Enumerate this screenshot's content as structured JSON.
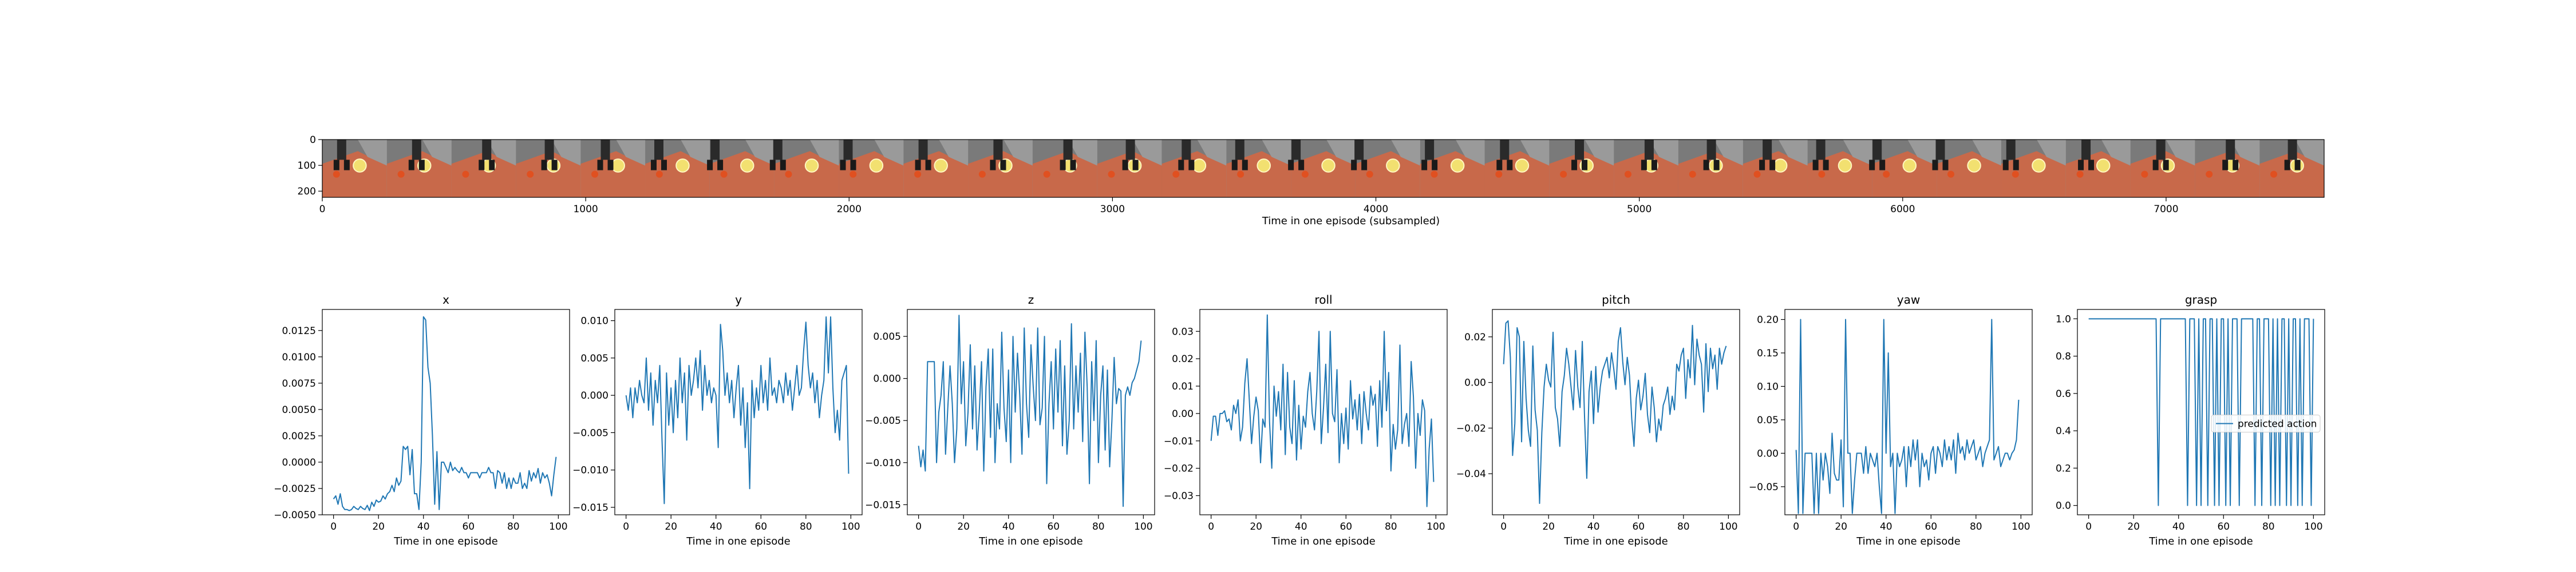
{
  "filmstrip": {
    "xlabel": "Time in one episode (subsampled)",
    "xticks": [
      0,
      1000,
      2000,
      3000,
      4000,
      5000,
      6000,
      7000
    ],
    "yticks": [
      0,
      100,
      200
    ],
    "xlim": [
      0,
      7600
    ],
    "ylim": [
      0,
      224
    ],
    "frames": 31,
    "colors": {
      "floor": "#c8694a",
      "background": "#7a7a7a",
      "ball": "#f2e070",
      "gripper": "#2a2a2a"
    }
  },
  "chart_data": [
    {
      "type": "line",
      "title": "x",
      "xlabel": "Time in one episode",
      "xlim": [
        -5,
        105
      ],
      "ylim": [
        -0.005,
        0.0145
      ],
      "xticks": [
        0,
        20,
        40,
        60,
        80,
        100
      ],
      "yticks": [
        -0.005,
        -0.0025,
        0.0,
        0.0025,
        0.005,
        0.0075,
        0.01,
        0.0125
      ],
      "ytick_labels": [
        "−0.0050",
        "−0.0025",
        "0.0000",
        "0.0025",
        "0.0050",
        "0.0075",
        "0.0100",
        "0.0125"
      ],
      "values": [
        -0.0035,
        -0.0032,
        -0.004,
        -0.003,
        -0.0042,
        -0.0045,
        -0.0045,
        -0.0046,
        -0.0045,
        -0.0042,
        -0.0044,
        -0.0045,
        -0.0042,
        -0.0044,
        -0.0045,
        -0.0041,
        -0.0046,
        -0.0038,
        -0.0042,
        -0.0036,
        -0.0038,
        -0.0037,
        -0.0032,
        -0.0035,
        -0.003,
        -0.0028,
        -0.0022,
        -0.0028,
        -0.0015,
        -0.0022,
        -0.0018,
        0.0015,
        0.0012,
        0.0015,
        -0.0012,
        0.0012,
        -0.003,
        -0.003,
        -0.0045,
        0.0,
        0.0138,
        0.0135,
        0.009,
        0.0075,
        0.0025,
        -0.004,
        0.001,
        -0.0045,
        0.0,
        0.0,
        -0.0005,
        -0.001,
        0.0,
        -0.0008,
        -0.0005,
        -0.0008,
        -0.001,
        -0.0005,
        -0.001,
        -0.001,
        -0.0015,
        -0.001,
        -0.001,
        -0.001,
        -0.001,
        -0.0015,
        -0.001,
        -0.001,
        -0.001,
        -0.0005,
        -0.001,
        -0.001,
        -0.0025,
        -0.0008,
        -0.001,
        -0.002,
        -0.001,
        -0.0025,
        -0.0015,
        -0.0025,
        -0.0015,
        -0.002,
        -0.002,
        -0.001,
        -0.0025,
        -0.002,
        -0.0025,
        -0.0008,
        -0.0018,
        -0.001,
        -0.0015,
        -0.0006,
        -0.002,
        -0.001,
        -0.0015,
        -0.0012,
        -0.002,
        -0.0032,
        -0.0012,
        0.0005
      ]
    },
    {
      "type": "line",
      "title": "y",
      "xlabel": "Time in one episode",
      "xlim": [
        -5,
        105
      ],
      "ylim": [
        -0.016,
        0.0115
      ],
      "xticks": [
        0,
        20,
        40,
        60,
        80,
        100
      ],
      "yticks": [
        -0.015,
        -0.01,
        -0.005,
        0.0,
        0.005,
        0.01
      ],
      "ytick_labels": [
        "−0.015",
        "−0.010",
        "−0.005",
        "0.000",
        "0.005",
        "0.010"
      ],
      "values": [
        0.0,
        -0.002,
        0.001,
        -0.003,
        0.001,
        -0.001,
        0.002,
        0.0,
        -0.001,
        0.005,
        -0.002,
        0.003,
        -0.004,
        0.002,
        -0.001,
        0.004,
        -0.006,
        -0.0145,
        0.003,
        -0.004,
        0.001,
        -0.005,
        0.002,
        -0.003,
        0.005,
        -0.001,
        0.003,
        -0.006,
        0.004,
        0.0,
        0.002,
        0.005,
        0.001,
        0.006,
        -0.002,
        0.004,
        0.0,
        0.002,
        -0.001,
        0.001,
        0.0,
        -0.007,
        0.0095,
        0.006,
        0.0,
        0.003,
        -0.001,
        0.002,
        -0.003,
        0.001,
        0.004,
        -0.004,
        0.001,
        -0.007,
        -0.001,
        -0.0125,
        0.002,
        -0.003,
        0.001,
        -0.002,
        0.004,
        -0.001,
        0.002,
        -0.002,
        0.005,
        0.0,
        0.001,
        -0.001,
        0.002,
        0.001,
        -0.001,
        0.003,
        0.0,
        0.002,
        -0.002,
        0.001,
        0.004,
        0.0,
        0.001,
        0.006,
        0.0098,
        0.004,
        0.001,
        0.003,
        -0.001,
        0.002,
        -0.003,
        0.0,
        0.002,
        0.0105,
        0.003,
        0.0105,
        0.001,
        -0.005,
        -0.002,
        -0.006,
        0.002,
        0.003,
        0.004,
        -0.0105
      ]
    },
    {
      "type": "line",
      "title": "z",
      "xlabel": "Time in one episode",
      "xlim": [
        -5,
        105
      ],
      "ylim": [
        -0.0162,
        0.0082
      ],
      "xticks": [
        0,
        20,
        40,
        60,
        80,
        100
      ],
      "yticks": [
        -0.015,
        -0.01,
        -0.005,
        0.0,
        0.005
      ],
      "ytick_labels": [
        "−0.015",
        "−0.010",
        "−0.005",
        "0.000",
        "0.005"
      ],
      "values": [
        -0.008,
        -0.0105,
        -0.0085,
        -0.011,
        0.002,
        0.002,
        0.002,
        0.002,
        -0.01,
        -0.004,
        -0.002,
        0.002,
        -0.009,
        -0.0035,
        0.0015,
        -0.003,
        -0.01,
        -0.006,
        0.0075,
        -0.003,
        0.002,
        -0.008,
        -0.004,
        0.004,
        -0.006,
        0.0015,
        -0.0085,
        -0.004,
        0.002,
        -0.011,
        -0.001,
        0.0035,
        -0.007,
        0.0035,
        -0.01,
        -0.003,
        -0.006,
        0.0055,
        -0.0035,
        -0.0075,
        0.001,
        -0.01,
        0.005,
        -0.004,
        0.003,
        -0.002,
        -0.009,
        0.006,
        -0.003,
        -0.007,
        0.004,
        -0.001,
        -0.005,
        0.006,
        -0.0055,
        -0.0035,
        0.005,
        -0.0125,
        -0.003,
        0.002,
        -0.006,
        0.0035,
        -0.004,
        0.0045,
        -0.008,
        0.0015,
        -0.009,
        -0.005,
        0.0065,
        -0.006,
        0.0015,
        -0.004,
        0.003,
        -0.0075,
        0.0055,
        -0.001,
        -0.0125,
        0.002,
        -0.005,
        0.0045,
        -0.01,
        -0.002,
        0.0015,
        -0.0085,
        0.001,
        -0.0105,
        -0.005,
        0.0025,
        -0.003,
        -0.0012,
        -0.0015,
        -0.0152,
        -0.002,
        -0.001,
        -0.002,
        -0.0005,
        0.0,
        0.001,
        0.002,
        0.0045
      ]
    },
    {
      "type": "line",
      "title": "roll",
      "xlabel": "Time in one episode",
      "xlim": [
        -5,
        105
      ],
      "ylim": [
        -0.037,
        0.038
      ],
      "xticks": [
        0,
        20,
        40,
        60,
        80,
        100
      ],
      "yticks": [
        -0.03,
        -0.02,
        -0.01,
        0.0,
        0.01,
        0.02,
        0.03
      ],
      "ytick_labels": [
        "−0.03",
        "−0.02",
        "−0.01",
        "0.00",
        "0.01",
        "0.02",
        "0.03"
      ],
      "values": [
        -0.01,
        -0.001,
        -0.001,
        -0.008,
        0.0,
        0.0,
        0.001,
        -0.003,
        -0.002,
        -0.006,
        0.003,
        0.0,
        0.005,
        -0.01,
        -0.005,
        0.011,
        0.02,
        0.005,
        -0.011,
        -0.001,
        0.006,
        0.001,
        -0.018,
        -0.002,
        -0.005,
        0.036,
        -0.003,
        -0.02,
        0.01,
        -0.001,
        0.008,
        -0.006,
        0.018,
        -0.015,
        0.015,
        -0.005,
        -0.011,
        0.012,
        -0.017,
        0.003,
        -0.013,
        -0.001,
        -0.005,
        0.008,
        0.015,
        0.0,
        -0.006,
        0.008,
        0.03,
        -0.011,
        0.002,
        0.018,
        -0.007,
        0.03,
        0.0,
        -0.003,
        0.016,
        -0.018,
        0.0,
        -0.011,
        0.002,
        -0.013,
        0.012,
        -0.002,
        0.005,
        -0.006,
        0.007,
        -0.011,
        0.008,
        0.0,
        -0.006,
        0.01,
        0.003,
        0.007,
        -0.012,
        0.012,
        -0.005,
        0.03,
        0.001,
        0.015,
        -0.021,
        -0.004,
        -0.013,
        -0.006,
        0.025,
        -0.011,
        -0.004,
        0.0,
        -0.012,
        0.019,
        0.006,
        -0.02,
        0.0,
        -0.008,
        0.005,
        0.001,
        -0.034,
        -0.013,
        -0.002,
        -0.025
      ]
    },
    {
      "type": "line",
      "title": "pitch",
      "xlabel": "Time in one episode",
      "xlim": [
        -5,
        105
      ],
      "ylim": [
        -0.058,
        0.032
      ],
      "xticks": [
        0,
        20,
        40,
        60,
        80,
        100
      ],
      "yticks": [
        -0.04,
        -0.02,
        0.0,
        0.02
      ],
      "ytick_labels": [
        "−0.04",
        "−0.02",
        "0.00",
        "0.02"
      ],
      "values": [
        0.008,
        0.026,
        0.027,
        0.011,
        -0.032,
        -0.018,
        0.024,
        0.02,
        -0.026,
        0.018,
        -0.007,
        -0.021,
        -0.028,
        0.016,
        -0.012,
        -0.021,
        -0.053,
        -0.022,
        -0.002,
        0.008,
        0.001,
        -0.002,
        0.022,
        -0.011,
        -0.016,
        -0.028,
        -0.004,
        0.003,
        0.015,
        0.008,
        -0.002,
        -0.012,
        0.014,
        -0.002,
        -0.011,
        0.018,
        -0.015,
        -0.042,
        -0.004,
        0.005,
        -0.018,
        0.007,
        -0.013,
        -0.002,
        0.005,
        0.008,
        0.011,
        0.002,
        0.013,
        0.006,
        -0.003,
        0.018,
        0.024,
        0.009,
        -0.001,
        0.011,
        0.003,
        -0.016,
        -0.028,
        -0.007,
        0.001,
        -0.012,
        -0.006,
        0.004,
        -0.014,
        -0.022,
        -0.002,
        -0.011,
        -0.026,
        -0.016,
        -0.021,
        -0.01,
        -0.007,
        -0.002,
        -0.014,
        -0.006,
        -0.012,
        0.008,
        0.005,
        0.012,
        0.015,
        -0.007,
        0.01,
        0.002,
        0.025,
        -0.001,
        0.019,
        0.012,
        0.008,
        -0.013,
        0.017,
        -0.004,
        0.015,
        0.006,
        0.012,
        -0.003,
        0.015,
        0.008,
        0.013,
        0.016
      ]
    },
    {
      "type": "line",
      "title": "yaw",
      "xlabel": "Time in one episode",
      "xlim": [
        -5,
        105
      ],
      "ylim": [
        -0.092,
        0.215
      ],
      "xticks": [
        0,
        20,
        40,
        60,
        80,
        100
      ],
      "yticks": [
        -0.05,
        0.0,
        0.05,
        0.1,
        0.15,
        0.2
      ],
      "ytick_labels": [
        "−0.05",
        "0.00",
        "0.05",
        "0.10",
        "0.15",
        "0.20"
      ],
      "values": [
        0.005,
        -0.09,
        0.2,
        -0.09,
        0.0,
        0.0,
        0.0,
        0.0,
        -0.09,
        0.0,
        -0.09,
        0.0,
        -0.04,
        0.0,
        -0.02,
        -0.06,
        0.03,
        -0.03,
        -0.04,
        -0.04,
        0.02,
        -0.08,
        0.2,
        0.0,
        0.0,
        -0.09,
        -0.04,
        0.0,
        0.0,
        0.0,
        -0.03,
        0.01,
        -0.03,
        0.0,
        -0.01,
        -0.02,
        0.0,
        -0.05,
        -0.09,
        0.2,
        0.0,
        0.15,
        -0.02,
        0.0,
        -0.09,
        0.0,
        -0.02,
        -0.01,
        0.01,
        -0.05,
        0.01,
        -0.02,
        0.02,
        -0.01,
        0.02,
        -0.05,
        0.0,
        -0.02,
        -0.01,
        -0.04,
        0.0,
        0.01,
        -0.03,
        0.01,
        0.0,
        -0.02,
        0.02,
        -0.01,
        0.01,
        -0.01,
        0.02,
        -0.03,
        0.03,
        0.0,
        0.01,
        -0.01,
        0.02,
        0.0,
        0.01,
        0.02,
        -0.01,
        0.0,
        0.01,
        -0.02,
        0.0,
        0.01,
        0.02,
        0.2,
        -0.01,
        0.0,
        0.01,
        -0.02,
        -0.01,
        0.0,
        0.0,
        -0.01,
        0.0,
        0.005,
        0.02,
        0.08
      ]
    },
    {
      "type": "line",
      "title": "grasp",
      "xlabel": "Time in one episode",
      "xlim": [
        -5,
        105
      ],
      "ylim": [
        -0.05,
        1.05
      ],
      "xticks": [
        0,
        20,
        40,
        60,
        80,
        100
      ],
      "yticks": [
        0.0,
        0.2,
        0.4,
        0.6,
        0.8,
        1.0
      ],
      "ytick_labels": [
        "0.0",
        "0.2",
        "0.4",
        "0.6",
        "0.8",
        "1.0"
      ],
      "legend": {
        "label": "predicted action",
        "loc": "center right"
      },
      "values": [
        1,
        1,
        1,
        1,
        1,
        1,
        1,
        1,
        1,
        1,
        1,
        1,
        1,
        1,
        1,
        1,
        1,
        1,
        1,
        1,
        1,
        1,
        1,
        1,
        1,
        1,
        1,
        1,
        1,
        1,
        1,
        0,
        1,
        1,
        1,
        1,
        1,
        1,
        1,
        1,
        1,
        1,
        1,
        1,
        0,
        1,
        1,
        1,
        0,
        1,
        0,
        1,
        1,
        0,
        1,
        1,
        0,
        1,
        0,
        1,
        1,
        0,
        1,
        0,
        1,
        1,
        1,
        0,
        1,
        1,
        1,
        1,
        1,
        1,
        0,
        1,
        1,
        0,
        1,
        1,
        1,
        0,
        1,
        0,
        1,
        0,
        1,
        1,
        0,
        1,
        0,
        1,
        1,
        0,
        1,
        0,
        1,
        1,
        1,
        0,
        1
      ]
    }
  ]
}
